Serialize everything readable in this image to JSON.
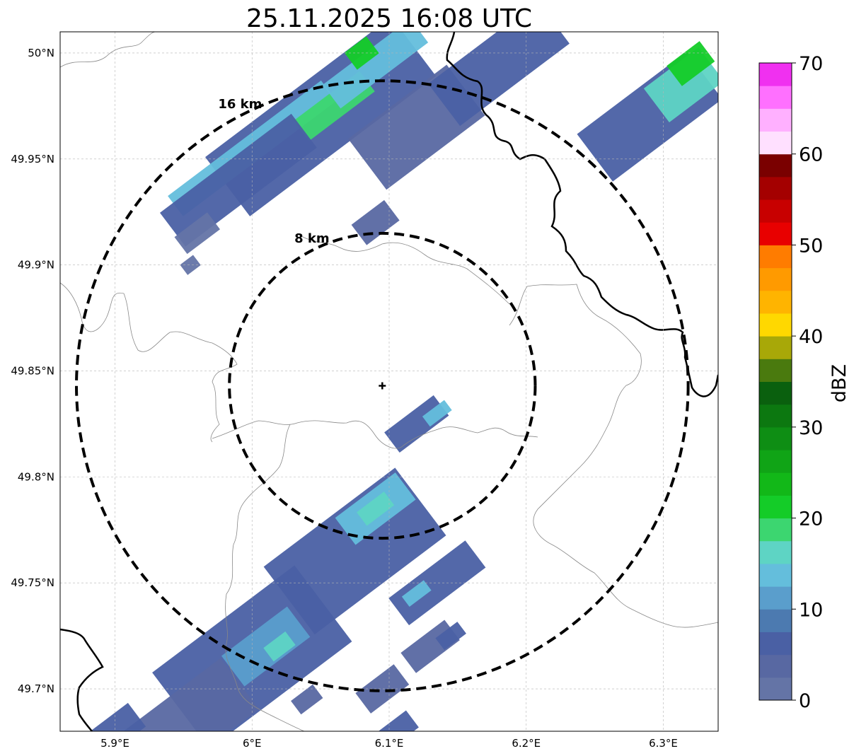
{
  "title": "25.11.2025 16:08 UTC",
  "map": {
    "lon_range": [
      5.86,
      6.34
    ],
    "lat_range": [
      49.68,
      50.01
    ],
    "radar_site": {
      "lon": 6.095,
      "lat": 49.843
    },
    "x_ticks": [
      {
        "value": 5.9,
        "label": "5.9°E"
      },
      {
        "value": 6.0,
        "label": "6°E"
      },
      {
        "value": 6.1,
        "label": "6.1°E"
      },
      {
        "value": 6.2,
        "label": "6.2°E"
      },
      {
        "value": 6.3,
        "label": "6.3°E"
      }
    ],
    "y_ticks": [
      {
        "value": 50.0,
        "label": "50°N"
      },
      {
        "value": 49.95,
        "label": "49.95°N"
      },
      {
        "value": 49.9,
        "label": "49.9°N"
      },
      {
        "value": 49.85,
        "label": "49.85°N"
      },
      {
        "value": 49.8,
        "label": "49.8°N"
      },
      {
        "value": 49.75,
        "label": "49.75°N"
      },
      {
        "value": 49.7,
        "label": "49.7°N"
      }
    ],
    "grid": true,
    "range_rings": [
      {
        "radius_km": 8,
        "label": "8 km"
      },
      {
        "radius_km": 16,
        "label": "16 km"
      }
    ]
  },
  "colorbar": {
    "label": "dBZ",
    "ticks": [
      {
        "value": 0,
        "label": "0"
      },
      {
        "value": 10,
        "label": "10"
      },
      {
        "value": 20,
        "label": "20"
      },
      {
        "value": 30,
        "label": "30"
      },
      {
        "value": 40,
        "label": "40"
      },
      {
        "value": 50,
        "label": "50"
      },
      {
        "value": 60,
        "label": "60"
      },
      {
        "value": 70,
        "label": "70"
      }
    ],
    "levels": [
      0,
      2.5,
      5,
      7.5,
      10,
      12.5,
      15,
      17.5,
      20,
      22.5,
      25,
      27.5,
      30,
      32.5,
      35,
      37.5,
      40,
      42.5,
      45,
      47.5,
      50,
      52.5,
      55,
      57.5,
      60,
      62.5,
      65,
      67.5,
      70
    ],
    "colors": [
      "#6474a6",
      "#5868a2",
      "#4a60a4",
      "#4c7ab0",
      "#5a9ecc",
      "#64bedc",
      "#5ed4c4",
      "#3cd670",
      "#14cc28",
      "#12b818",
      "#10a416",
      "#0e8e14",
      "#0c7810",
      "#0a600e",
      "#4a7a0e",
      "#a8a808",
      "#ffd800",
      "#ffb400",
      "#ff9a00",
      "#ff7c00",
      "#e80000",
      "#c80000",
      "#a40000",
      "#7a0000",
      "#ffe0ff",
      "#ffb0ff",
      "#ff70ff",
      "#f030f0"
    ]
  },
  "precip_cells": [
    {
      "lon": 6.05,
      "lat": 49.97,
      "len": 0.17,
      "w": 0.035,
      "dbz": 7
    },
    {
      "lon": 6.0,
      "lat": 49.955,
      "len": 0.14,
      "w": 0.012,
      "dbz": 14
    },
    {
      "lon": 6.06,
      "lat": 49.975,
      "len": 0.06,
      "w": 0.012,
      "dbz": 19
    },
    {
      "lon": 5.99,
      "lat": 49.94,
      "len": 0.12,
      "w": 0.02,
      "dbz": 5
    },
    {
      "lon": 6.12,
      "lat": 49.965,
      "len": 0.09,
      "w": 0.03,
      "dbz": 4
    },
    {
      "lon": 6.09,
      "lat": 49.995,
      "len": 0.08,
      "w": 0.014,
      "dbz": 13
    },
    {
      "lon": 6.18,
      "lat": 49.995,
      "len": 0.1,
      "w": 0.025,
      "dbz": 5
    },
    {
      "lon": 6.09,
      "lat": 49.92,
      "len": 0.03,
      "w": 0.012,
      "dbz": 3
    },
    {
      "lon": 5.96,
      "lat": 49.915,
      "len": 0.03,
      "w": 0.01,
      "dbz": 2
    },
    {
      "lon": 5.955,
      "lat": 49.9,
      "len": 0.012,
      "w": 0.006,
      "dbz": 1
    },
    {
      "lon": 6.08,
      "lat": 50.0,
      "len": 0.02,
      "w": 0.01,
      "dbz": 22
    },
    {
      "lon": 6.29,
      "lat": 49.97,
      "len": 0.1,
      "w": 0.028,
      "dbz": 6
    },
    {
      "lon": 6.315,
      "lat": 49.985,
      "len": 0.05,
      "w": 0.02,
      "dbz": 17
    },
    {
      "lon": 6.32,
      "lat": 49.995,
      "len": 0.03,
      "w": 0.012,
      "dbz": 22
    },
    {
      "lon": 6.12,
      "lat": 49.825,
      "len": 0.045,
      "w": 0.012,
      "dbz": 5
    },
    {
      "lon": 6.135,
      "lat": 49.83,
      "len": 0.02,
      "w": 0.006,
      "dbz": 13
    },
    {
      "lon": 6.075,
      "lat": 49.765,
      "len": 0.12,
      "w": 0.04,
      "dbz": 5
    },
    {
      "lon": 6.09,
      "lat": 49.785,
      "len": 0.055,
      "w": 0.016,
      "dbz": 14
    },
    {
      "lon": 6.09,
      "lat": 49.785,
      "len": 0.025,
      "w": 0.008,
      "dbz": 17
    },
    {
      "lon": 6.135,
      "lat": 49.75,
      "len": 0.07,
      "w": 0.016,
      "dbz": 6
    },
    {
      "lon": 6.12,
      "lat": 49.745,
      "len": 0.02,
      "w": 0.006,
      "dbz": 13
    },
    {
      "lon": 6.0,
      "lat": 49.715,
      "len": 0.13,
      "w": 0.045,
      "dbz": 5
    },
    {
      "lon": 6.01,
      "lat": 49.72,
      "len": 0.06,
      "w": 0.018,
      "dbz": 12
    },
    {
      "lon": 6.02,
      "lat": 49.72,
      "len": 0.02,
      "w": 0.008,
      "dbz": 17
    },
    {
      "lon": 5.955,
      "lat": 49.685,
      "len": 0.09,
      "w": 0.03,
      "dbz": 4
    },
    {
      "lon": 5.9,
      "lat": 49.68,
      "len": 0.04,
      "w": 0.014,
      "dbz": 6
    },
    {
      "lon": 6.13,
      "lat": 49.72,
      "len": 0.04,
      "w": 0.012,
      "dbz": 4
    },
    {
      "lon": 6.145,
      "lat": 49.725,
      "len": 0.02,
      "w": 0.007,
      "dbz": 7
    },
    {
      "lon": 6.095,
      "lat": 49.7,
      "len": 0.035,
      "w": 0.012,
      "dbz": 4
    },
    {
      "lon": 6.105,
      "lat": 49.68,
      "len": 0.03,
      "w": 0.01,
      "dbz": 5
    },
    {
      "lon": 6.04,
      "lat": 49.695,
      "len": 0.02,
      "w": 0.008,
      "dbz": 3
    }
  ]
}
